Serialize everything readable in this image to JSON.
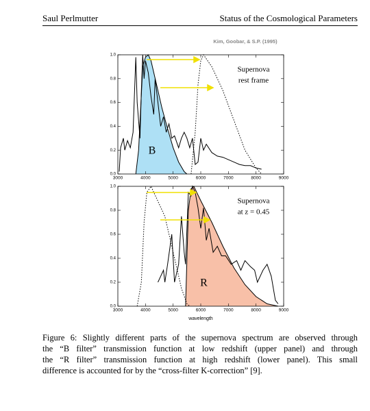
{
  "header": {
    "author": "Saul Perlmutter",
    "section": "Status of the Cosmological Parameters"
  },
  "credit": "Kim, Goobar, & S.P. (1995)",
  "chart_data": [
    {
      "type": "line",
      "annotation": [
        "Supernova",
        "rest frame"
      ],
      "xlim": [
        3000,
        9000
      ],
      "ylim": [
        0,
        1
      ],
      "xticks": [
        3000,
        4000,
        5000,
        6000,
        7000,
        8000,
        9000
      ],
      "yticks": [
        {
          "value": 0,
          "label": "0.0"
        },
        0.2,
        0.4,
        0.6,
        0.8,
        {
          "value": 1,
          "label": "1.0"
        }
      ],
      "series": [
        {
          "name": "B",
          "color": "#aee0f5",
          "fill": true,
          "x": [
            3650,
            3750,
            3900,
            4000,
            4100,
            4200,
            4400,
            4600,
            4800,
            5000,
            5200,
            5400,
            5500
          ],
          "values": [
            0,
            0.2,
            0.9,
            0.98,
            1.0,
            0.95,
            0.75,
            0.55,
            0.38,
            0.22,
            0.1,
            0.02,
            0
          ]
        },
        {
          "color": "#000000",
          "line_style": "dotted",
          "x": [
            5650,
            5800,
            5900,
            6000,
            6100,
            6400,
            6800,
            7200,
            7600,
            8000,
            8200
          ],
          "values": [
            0,
            0.35,
            0.75,
            0.95,
            1.0,
            0.9,
            0.7,
            0.45,
            0.2,
            0.05,
            0
          ]
        },
        {
          "color": "#000000",
          "line_style": "solid",
          "x": [
            3050,
            3100,
            3200,
            3250,
            3350,
            3450,
            3550,
            3650,
            3700,
            3800,
            3850,
            3900,
            3950,
            4000,
            4100,
            4200,
            4300,
            4350,
            4450,
            4550,
            4650,
            4750,
            4850,
            4950,
            5050,
            5200,
            5300,
            5400,
            5500,
            5600,
            5700,
            5800,
            5900,
            6000,
            6100,
            6200,
            6400,
            6600,
            6800,
            7000,
            7200,
            7400,
            7600,
            7800,
            8000,
            8200
          ],
          "values": [
            0.02,
            0.22,
            0.3,
            0.2,
            0.28,
            0.22,
            0.35,
            0.98,
            0.6,
            0.3,
            0.7,
            1.0,
            0.8,
            0.95,
            0.85,
            0.65,
            0.5,
            0.8,
            0.6,
            0.4,
            0.48,
            0.35,
            0.42,
            0.3,
            0.32,
            0.22,
            0.3,
            0.35,
            0.3,
            0.22,
            0.3,
            0.08,
            0.1,
            0.3,
            0.2,
            0.25,
            0.18,
            0.15,
            0.14,
            0.12,
            0.1,
            0.08,
            0.07,
            0.07,
            0.05,
            0.04
          ]
        }
      ]
    },
    {
      "type": "line",
      "annotation": [
        "Supernova",
        "at z = 0.45"
      ],
      "xlabel": "wavelength",
      "xlim": [
        3000,
        9000
      ],
      "ylim": [
        0,
        1
      ],
      "xticks": [
        3000,
        4000,
        5000,
        6000,
        7000,
        8000,
        9000
      ],
      "yticks": [
        {
          "value": 0,
          "label": "0.0"
        },
        0.2,
        0.4,
        0.6,
        0.8,
        {
          "value": 1,
          "label": "1.0"
        }
      ],
      "series": [
        {
          "name": "R",
          "color": "#f8c0a8",
          "fill": true,
          "x": [
            5450,
            5550,
            5650,
            5750,
            6000,
            6400,
            6800,
            7200,
            7600,
            8000,
            8400,
            8800
          ],
          "values": [
            0,
            0.8,
            0.98,
            1.0,
            0.88,
            0.7,
            0.5,
            0.32,
            0.18,
            0.08,
            0.02,
            0
          ]
        },
        {
          "color": "#000000",
          "line_style": "dotted",
          "x": [
            3700,
            3850,
            3950,
            4050,
            4200,
            4400,
            4700,
            5000,
            5300,
            5500,
            5600
          ],
          "values": [
            0,
            0.2,
            0.7,
            0.95,
            1.0,
            0.9,
            0.75,
            0.45,
            0.15,
            0.02,
            0
          ]
        },
        {
          "color": "#000000",
          "line_style": "solid",
          "x": [
            4450,
            4550,
            4650,
            4700,
            4800,
            4950,
            5050,
            5200,
            5300,
            5400,
            5450,
            5550,
            5650,
            5700,
            5800,
            5900,
            6000,
            6100,
            6200,
            6300,
            6450,
            6600,
            6750,
            6900,
            7100,
            7300,
            7450,
            7600,
            7800,
            7950,
            8050,
            8250,
            8400,
            8550,
            8700,
            8800
          ],
          "values": [
            0.2,
            0.25,
            0.3,
            0.2,
            0.35,
            0.6,
            0.2,
            0.35,
            0.75,
            0.45,
            0.35,
            0.95,
            0.92,
            1.0,
            0.95,
            0.82,
            0.65,
            0.82,
            0.55,
            0.65,
            0.45,
            0.5,
            0.42,
            0.42,
            0.35,
            0.38,
            0.3,
            0.38,
            0.33,
            0.3,
            0.2,
            0.3,
            0.35,
            0.25,
            0.05,
            0.02
          ]
        }
      ]
    }
  ],
  "caption": [
    "Figure 6: Slightly different parts of the supernova spectrum are observed through",
    "the “B filter” transmission function at low redshift (upper panel) and through",
    "the “R filter” transmission function at high redshift (lower panel). This small",
    "difference is accounted for by the “cross-filter K-correction” [9]."
  ]
}
